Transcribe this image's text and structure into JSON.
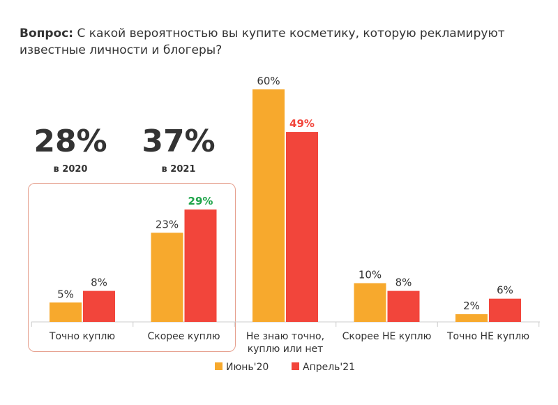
{
  "question": {
    "prefix": "Вопрос:",
    "text": "С какой вероятностью вы купите косметику, которую рекламируют известные личности и блогеры?"
  },
  "highlights": [
    {
      "value": "28%",
      "label": "в 2020"
    },
    {
      "value": "37%",
      "label": "в 2021"
    }
  ],
  "colors": {
    "june20": "#f7a92d",
    "april21": "#f2453b",
    "increase_label": "#1fa44a",
    "decrease_label": "#f2453b",
    "text": "#333333"
  },
  "chart_data": {
    "type": "bar",
    "title": "С какой вероятностью вы купите косметику, которую рекламируют известные личности и блогеры?",
    "xlabel": "",
    "ylabel": "",
    "ylim": [
      0,
      60
    ],
    "categories": [
      [
        "Точно куплю"
      ],
      [
        "Скорее куплю"
      ],
      [
        "Не знаю точно,",
        "куплю или нет"
      ],
      [
        "Скорее НЕ куплю"
      ],
      [
        "Точно НЕ куплю"
      ]
    ],
    "series": [
      {
        "name": "Июнь'20",
        "values": [
          5,
          23,
          60,
          10,
          2
        ]
      },
      {
        "name": "Апрель'21",
        "values": [
          8,
          29,
          49,
          8,
          6
        ]
      }
    ],
    "data_labels": [
      [
        "5%",
        "23%",
        "60%",
        "10%",
        "2%"
      ],
      [
        "8%",
        "29%",
        "49%",
        "8%",
        "6%"
      ]
    ],
    "emphasized_labels": {
      "Скорее куплю": "increase",
      "Не знаю точно, куплю или нет": "decrease"
    },
    "legend": [
      "Июнь'20",
      "Апрель'21"
    ],
    "legend_position": "bottom-center"
  }
}
